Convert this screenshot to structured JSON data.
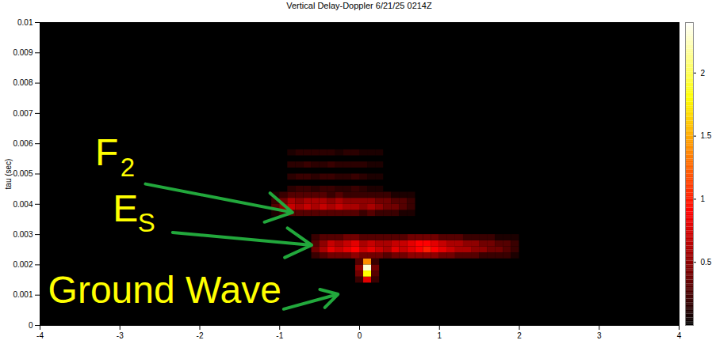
{
  "chart_data": {
    "type": "heatmap",
    "title": "Vertical Delay-Doppler 6/21/25 0214Z",
    "y_label": "tau (sec)",
    "xlim": [
      -4,
      4
    ],
    "xticks": [
      -4,
      -3,
      -2,
      -1,
      0,
      1,
      2,
      3,
      4
    ],
    "ylim": [
      0,
      0.01
    ],
    "yticks": [
      0,
      0.001,
      0.002,
      0.003,
      0.004,
      0.005,
      0.006,
      0.007,
      0.008,
      0.009,
      0.01
    ],
    "colorbar": {
      "lim": [
        0,
        2.4
      ],
      "ticks": [
        0.5,
        1,
        1.5,
        2
      ]
    },
    "cells": {
      "x_step": 0.1,
      "tau_step": 0.0002,
      "rows": [
        {
          "tau": 0.0014,
          "x0": -0.05,
          "values": [
            0.2,
            0.8,
            0.2
          ]
        },
        {
          "tau": 0.0016,
          "x0": -0.05,
          "values": [
            0.4,
            1.8,
            0.3
          ]
        },
        {
          "tau": 0.0018,
          "x0": -0.05,
          "values": [
            0.5,
            2.3,
            0.4
          ]
        },
        {
          "tau": 0.002,
          "x0": -0.05,
          "values": [
            0.3,
            1.4,
            0.2
          ]
        },
        {
          "tau": 0.0022,
          "x0": -0.6,
          "values": [
            0.2,
            0.3,
            0.4,
            0.4,
            0.4,
            0.5,
            0.4,
            0.4,
            0.4,
            0.3,
            0.4,
            0.4,
            0.5,
            0.5,
            0.5,
            0.5,
            0.4,
            0.4,
            0.3,
            0.3,
            0.3,
            0.2,
            0.2,
            0.2,
            0.2,
            0.1
          ]
        },
        {
          "tau": 0.0024,
          "x0": -0.6,
          "values": [
            0.4,
            0.6,
            0.8,
            0.7,
            0.8,
            0.9,
            0.7,
            0.8,
            0.7,
            0.6,
            0.8,
            0.7,
            0.8,
            0.9,
            1.0,
            0.9,
            0.8,
            0.7,
            0.6,
            0.6,
            0.5,
            0.5,
            0.4,
            0.4,
            0.3,
            0.2
          ]
        },
        {
          "tau": 0.0026,
          "x0": -0.6,
          "values": [
            0.3,
            0.5,
            0.7,
            0.6,
            0.7,
            0.8,
            0.6,
            0.7,
            0.6,
            0.6,
            0.7,
            0.7,
            0.8,
            0.9,
            0.9,
            0.8,
            0.7,
            0.6,
            0.6,
            0.5,
            0.5,
            0.4,
            0.4,
            0.3,
            0.3,
            0.2
          ]
        },
        {
          "tau": 0.0028,
          "x0": -0.6,
          "values": [
            0.2,
            0.3,
            0.3,
            0.3,
            0.4,
            0.4,
            0.3,
            0.3,
            0.3,
            0.3,
            0.3,
            0.3,
            0.4,
            0.4,
            0.4,
            0.4,
            0.3,
            0.3,
            0.3,
            0.2,
            0.2,
            0.2,
            0.2,
            0.1,
            0.1,
            0.1
          ]
        },
        {
          "tau": 0.0036,
          "x0": -1.1,
          "values": [
            0.1,
            0.2,
            0.3,
            0.3,
            0.3,
            0.3,
            0.3,
            0.3,
            0.3,
            0.3,
            0.3,
            0.2,
            0.3,
            0.2,
            0.2,
            0.2,
            0.1,
            0.1
          ]
        },
        {
          "tau": 0.0038,
          "x0": -1.1,
          "values": [
            0.3,
            0.5,
            0.7,
            0.6,
            0.7,
            0.6,
            0.7,
            0.6,
            0.7,
            0.6,
            0.6,
            0.5,
            0.6,
            0.5,
            0.4,
            0.4,
            0.3,
            0.2
          ]
        },
        {
          "tau": 0.004,
          "x0": -1.1,
          "values": [
            0.2,
            0.4,
            0.6,
            0.5,
            0.6,
            0.6,
            0.6,
            0.5,
            0.6,
            0.5,
            0.5,
            0.5,
            0.5,
            0.4,
            0.4,
            0.3,
            0.3,
            0.2
          ]
        },
        {
          "tau": 0.0042,
          "x0": -1.1,
          "values": [
            0.1,
            0.2,
            0.3,
            0.3,
            0.3,
            0.3,
            0.3,
            0.2,
            0.3,
            0.2,
            0.2,
            0.2,
            0.2,
            0.2,
            0.2,
            0.1,
            0.1,
            0.1
          ]
        },
        {
          "tau": 0.0044,
          "x0": -0.9,
          "values": [
            0.15,
            0.2,
            0.2,
            0.15,
            0.2,
            0.2,
            0.15,
            0.15,
            0.2,
            0.15,
            0.1,
            0.1
          ]
        },
        {
          "tau": 0.0048,
          "x0": -0.9,
          "values": [
            0.15,
            0.2,
            0.2,
            0.15,
            0.2,
            0.2,
            0.15,
            0.15,
            0.2,
            0.15,
            0.1,
            0.1
          ]
        },
        {
          "tau": 0.0052,
          "x0": -0.9,
          "values": [
            0.15,
            0.15,
            0.2,
            0.15,
            0.15,
            0.2,
            0.15,
            0.15,
            0.15,
            0.15,
            0.1,
            0.1
          ]
        },
        {
          "tau": 0.0056,
          "x0": -0.9,
          "values": [
            0.1,
            0.15,
            0.15,
            0.15,
            0.15,
            0.15,
            0.1,
            0.15,
            0.15,
            0.1,
            0.1,
            0.1
          ]
        }
      ]
    },
    "annotations": [
      {
        "text": "F",
        "sub": "2",
        "x": -3.31,
        "y": 0.00528,
        "arrow_from": [
          -2.68,
          0.00467
        ],
        "arrow_to": [
          -0.84,
          0.00373
        ],
        "color": "#ffff00"
      },
      {
        "text": "E",
        "sub": "S",
        "x": -3.09,
        "y": 0.00344,
        "arrow_from": [
          -2.34,
          0.00307
        ],
        "arrow_to": [
          -0.6,
          0.00265
        ],
        "color": "#ffff00"
      },
      {
        "text": "Ground Wave",
        "x": -3.9,
        "y": 0.00074,
        "arrow_from": [
          -0.95,
          0.00054
        ],
        "arrow_to": [
          -0.27,
          0.00103
        ],
        "color": "#ffff00"
      }
    ]
  }
}
